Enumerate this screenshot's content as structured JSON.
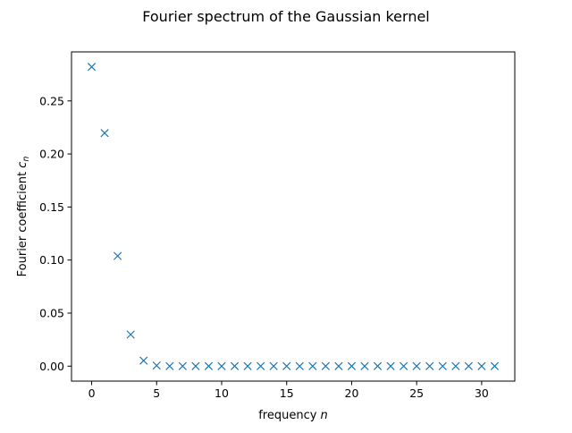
{
  "chart_data": {
    "type": "scatter",
    "title": "Fourier spectrum of the Gaussian kernel",
    "xlabel": "frequency n",
    "ylabel": "Fourier coefficient c_n",
    "xlabel_parts": {
      "text": "frequency ",
      "var": "n"
    },
    "ylabel_parts": {
      "text": "Fourier coefficient ",
      "var": "c",
      "sub": "n"
    },
    "xlim": [
      -1.55,
      32.55
    ],
    "ylim": [
      -0.0141,
      0.2962
    ],
    "xticks": [
      0,
      5,
      10,
      15,
      20,
      25,
      30
    ],
    "xtick_labels": [
      "0",
      "5",
      "10",
      "15",
      "20",
      "25",
      "30"
    ],
    "yticks": [
      0.0,
      0.05,
      0.1,
      0.15,
      0.2,
      0.25
    ],
    "ytick_labels": [
      "0.00",
      "0.05",
      "0.10",
      "0.15",
      "0.20",
      "0.25"
    ],
    "grid": false,
    "marker": "x",
    "series": [
      {
        "color": "#1f77b4",
        "x": [
          0,
          1,
          2,
          3,
          4,
          5,
          6,
          7,
          8,
          9,
          10,
          11,
          12,
          13,
          14,
          15,
          16,
          17,
          18,
          19,
          20,
          21,
          22,
          23,
          24,
          25,
          26,
          27,
          28,
          29,
          30,
          31
        ],
        "y": [
          0.2821,
          0.2197,
          0.1038,
          0.0298,
          0.0052,
          0.0006,
          0.0,
          0.0,
          0.0,
          0.0,
          0.0,
          0.0,
          0.0,
          0.0,
          0.0,
          0.0,
          0.0,
          0.0,
          0.0,
          0.0,
          0.0,
          0.0,
          0.0,
          0.0,
          0.0,
          0.0,
          0.0,
          0.0,
          0.0,
          0.0,
          0.0,
          0.0
        ]
      }
    ]
  }
}
